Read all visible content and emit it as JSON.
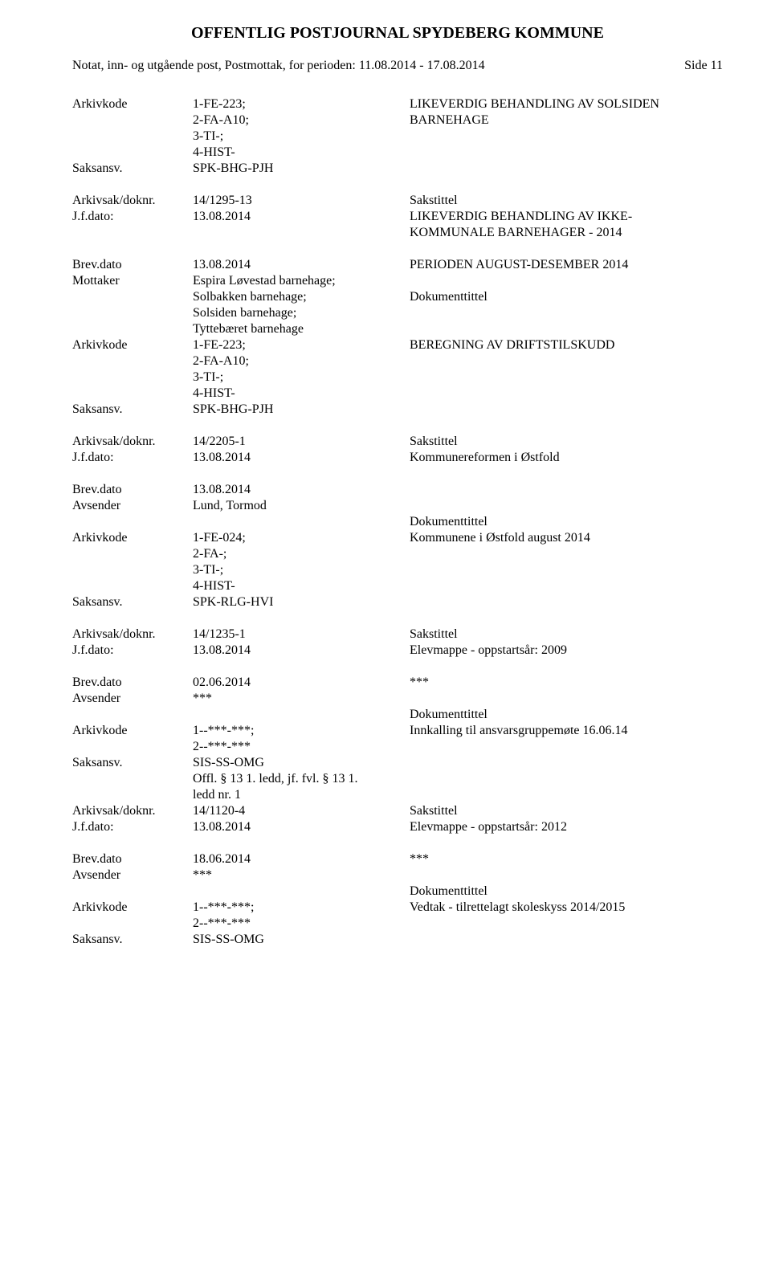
{
  "header": {
    "title": "OFFENTLIG POSTJOURNAL SPYDEBERG KOMMUNE",
    "subtitle": "Notat, inn- og utgående post, Postmottak, for perioden: 11.08.2014 - 17.08.2014",
    "page_label": "Side 11"
  },
  "labels": {
    "arkivkode": "Arkivkode",
    "saksansv": "Saksansv.",
    "arkivsak": "Arkivsak/doknr.",
    "jfdato": "J.f.dato:",
    "brevdato": "Brev.dato",
    "mottaker": "Mottaker",
    "avsender": "Avsender",
    "sakstittel": "Sakstittel",
    "dokumenttittel": "Dokumenttittel"
  },
  "b0": {
    "ak1": "1-FE-223;",
    "ak2": "2-FA-A10;",
    "ak3": "3-TI-;",
    "ak4": "4-HIST-",
    "sa": "SPK-BHG-PJH",
    "r1": "LIKEVERDIG BEHANDLING AV SOLSIDEN",
    "r2": "BARNEHAGE"
  },
  "b1": {
    "arkivsak": "14/1295-13",
    "jfdato": "13.08.2014",
    "st1": "LIKEVERDIG BEHANDLING AV IKKE-",
    "st2": "KOMMUNALE BARNEHAGER - 2014"
  },
  "b2": {
    "brevdato": "13.08.2014",
    "m1": "Espira Løvestad barnehage;",
    "m2": "Solbakken barnehage;",
    "m3": "Solsiden barnehage;",
    "m4": "Tyttebæret barnehage",
    "ak1": "1-FE-223;",
    "ak2": "2-FA-A10;",
    "ak3": "3-TI-;",
    "ak4": "4-HIST-",
    "sa": "SPK-BHG-PJH",
    "r1": "PERIODEN AUGUST-DESEMBER 2014",
    "r2": "BEREGNING AV DRIFTSTILSKUDD"
  },
  "b3": {
    "arkivsak": "14/2205-1",
    "jfdato": "13.08.2014",
    "st": "Kommunereformen i Østfold"
  },
  "b4": {
    "brevdato": "13.08.2014",
    "avsender": "Lund, Tormod",
    "ak1": "1-FE-024;",
    "ak2": "2-FA-;",
    "ak3": "3-TI-;",
    "ak4": "4-HIST-",
    "sa": "SPK-RLG-HVI",
    "dt": "Kommunene i Østfold august 2014"
  },
  "b5": {
    "arkivsak": "14/1235-1",
    "jfdato": "13.08.2014",
    "st": "Elevmappe - oppstartsår: 2009"
  },
  "b6": {
    "brevdato": "02.06.2014",
    "stars": "***",
    "avsender": "***",
    "ak1": "1--***-***;",
    "ak2": "2--***-***",
    "sa": "SIS-SS-OMG",
    "off1": "Offl. § 13 1. ledd, jf. fvl. § 13 1.",
    "off2": "ledd nr. 1",
    "dt": "Innkalling til ansvarsgruppemøte 16.06.14",
    "arkivsak": "14/1120-4",
    "jfdato": "13.08.2014",
    "st2": "Elevmappe - oppstartsår: 2012"
  },
  "b7": {
    "brevdato": "18.06.2014",
    "stars": "***",
    "avsender": "***",
    "ak1": "1--***-***;",
    "ak2": "2--***-***",
    "sa": "SIS-SS-OMG",
    "dt": "Vedtak - tilrettelagt skoleskyss 2014/2015"
  }
}
